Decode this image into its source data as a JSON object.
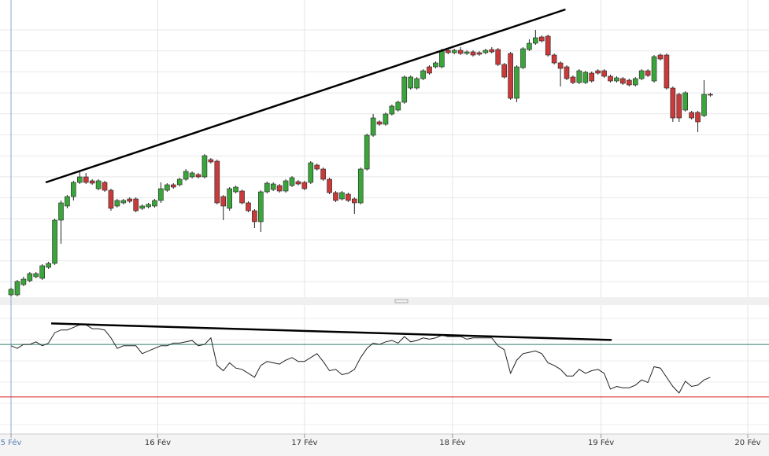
{
  "chart_data": [
    {
      "type": "candlestick",
      "xlim": [
        -1.77,
        121.4
      ],
      "ylim": [
        0,
        380
      ],
      "up_color": "#3aa53a",
      "down_color": "#c93a3a",
      "open": [
        5,
        5,
        18,
        23,
        28,
        26,
        40,
        45,
        100,
        118,
        130,
        148,
        155,
        150,
        140,
        148,
        138,
        118,
        122,
        127,
        127,
        115,
        117,
        118,
        125,
        138,
        145,
        145,
        152,
        155,
        158,
        155,
        177,
        175,
        130,
        115,
        136,
        137,
        122,
        112,
        98,
        136,
        139,
        144,
        137,
        144,
        149,
        148,
        148,
        170,
        165,
        152,
        135,
        127,
        133,
        127,
        122,
        165,
        208,
        225,
        222,
        235,
        240,
        250,
        268,
        268,
        280,
        295,
        295,
        295,
        316,
        313,
        316,
        312,
        314,
        313,
        313,
        317,
        317,
        298,
        312,
        255,
        294,
        317,
        325,
        333,
        334,
        310,
        300,
        295,
        282,
        275,
        275,
        287,
        290,
        290,
        283,
        277,
        280,
        278,
        272,
        280,
        290,
        277,
        310,
        310,
        268,
        260,
        240,
        237,
        237,
        233,
        260
      ],
      "high": [
        14,
        24,
        28,
        34,
        34,
        44,
        47,
        102,
        125,
        132,
        150,
        163,
        160,
        152,
        152,
        150,
        140,
        127,
        127,
        129,
        129,
        120,
        122,
        127,
        148,
        147,
        147,
        154,
        165,
        162,
        160,
        184,
        179,
        177,
        132,
        142,
        144,
        139,
        124,
        114,
        138,
        149,
        148,
        146,
        152,
        156,
        151,
        150,
        175,
        172,
        167,
        154,
        137,
        137,
        135,
        129,
        167,
        210,
        235,
        227,
        237,
        247,
        252,
        284,
        284,
        282,
        292,
        297,
        302,
        318,
        318,
        318,
        320,
        316,
        316,
        315,
        318,
        320,
        319,
        300,
        314,
        297,
        320,
        330,
        342,
        335,
        336,
        312,
        302,
        297,
        284,
        292,
        290,
        289,
        292,
        292,
        285,
        283,
        282,
        280,
        282,
        292,
        292,
        310,
        312,
        312,
        270,
        262,
        264,
        239,
        239,
        278,
        262
      ],
      "low": [
        3,
        3,
        16,
        21,
        26,
        24,
        38,
        43,
        70,
        115,
        125,
        146,
        146,
        145,
        138,
        136,
        112,
        116,
        120,
        122,
        110,
        113,
        115,
        116,
        122,
        136,
        140,
        143,
        150,
        153,
        153,
        153,
        172,
        120,
        100,
        112,
        134,
        120,
        110,
        90,
        85,
        134,
        137,
        135,
        135,
        142,
        144,
        138,
        146,
        163,
        150,
        133,
        123,
        125,
        123,
        108,
        120,
        163,
        206,
        220,
        220,
        233,
        238,
        248,
        266,
        266,
        278,
        285,
        293,
        293,
        311,
        311,
        310,
        310,
        308,
        309,
        311,
        312,
        296,
        280,
        253,
        250,
        292,
        315,
        323,
        326,
        308,
        298,
        270,
        278,
        273,
        273,
        273,
        275,
        285,
        281,
        275,
        275,
        272,
        270,
        270,
        278,
        282,
        275,
        303,
        266,
        225,
        225,
        238,
        228,
        212,
        231,
        257
      ],
      "close": [
        12,
        22,
        25,
        32,
        32,
        42,
        45,
        100,
        122,
        130,
        148,
        155,
        148,
        147,
        150,
        138,
        115,
        125,
        125,
        124,
        112,
        118,
        120,
        125,
        140,
        145,
        142,
        152,
        162,
        160,
        155,
        182,
        174,
        122,
        118,
        140,
        142,
        122,
        112,
        98,
        136,
        147,
        146,
        137,
        150,
        154,
        146,
        140,
        173,
        165,
        152,
        135,
        125,
        135,
        125,
        122,
        165,
        208,
        230,
        222,
        235,
        245,
        250,
        282,
        282,
        280,
        290,
        287,
        300,
        315,
        313,
        316,
        312,
        314,
        310,
        311,
        316,
        314,
        298,
        282,
        255,
        295,
        318,
        325,
        332,
        328,
        310,
        300,
        293,
        280,
        275,
        290,
        288,
        277,
        287,
        283,
        277,
        281,
        274,
        272,
        280,
        290,
        284,
        308,
        305,
        268,
        230,
        230,
        262,
        230,
        225,
        260,
        259
      ],
      "trendline": {
        "x": [
          5.55,
          88.8
        ],
        "y": [
          148,
          368
        ]
      }
    },
    {
      "type": "line",
      "xlim": [
        -1.77,
        121.4
      ],
      "ylim": [
        0,
        100
      ],
      "color": "#222222",
      "values": [
        69,
        67,
        70,
        70,
        72,
        69,
        71,
        79,
        81,
        81,
        83,
        85,
        85,
        82,
        82,
        81,
        75,
        67,
        69,
        69,
        69,
        63,
        65,
        67,
        69,
        69,
        71,
        71,
        72,
        73,
        69,
        70,
        75,
        54,
        50,
        56,
        52,
        51,
        48,
        45,
        54,
        57,
        56,
        55,
        58,
        60,
        57,
        57,
        60,
        63,
        57,
        50,
        51,
        47,
        48,
        51,
        60,
        67,
        71,
        70,
        72,
        73,
        71,
        76,
        72,
        73,
        75,
        74,
        75,
        77,
        76,
        76,
        76,
        74,
        75,
        75,
        75,
        75,
        69,
        66,
        48,
        58,
        63,
        64,
        65,
        63,
        56,
        54,
        51,
        46,
        46,
        51,
        48,
        50,
        51,
        48,
        36,
        38,
        37,
        37,
        39,
        43,
        41,
        53,
        52,
        45,
        38,
        33,
        42,
        38,
        39,
        43,
        45
      ],
      "levels": [
        {
          "value": 70,
          "color": "#2f7f6f"
        },
        {
          "value": 30,
          "color": "#d42020"
        }
      ],
      "trendline": {
        "x": [
          6.43,
          96.2
        ],
        "y": [
          86,
          73.4
        ]
      },
      "xticks": [
        {
          "value": 0,
          "label": "5 Fév"
        },
        {
          "value": 23.5,
          "label": "16 Fév"
        },
        {
          "value": 47,
          "label": "17 Fév"
        },
        {
          "value": 70.7,
          "label": "18 Fév"
        },
        {
          "value": 94.5,
          "label": "19 Fév"
        },
        {
          "value": 118,
          "label": "20 Fév"
        }
      ]
    }
  ]
}
